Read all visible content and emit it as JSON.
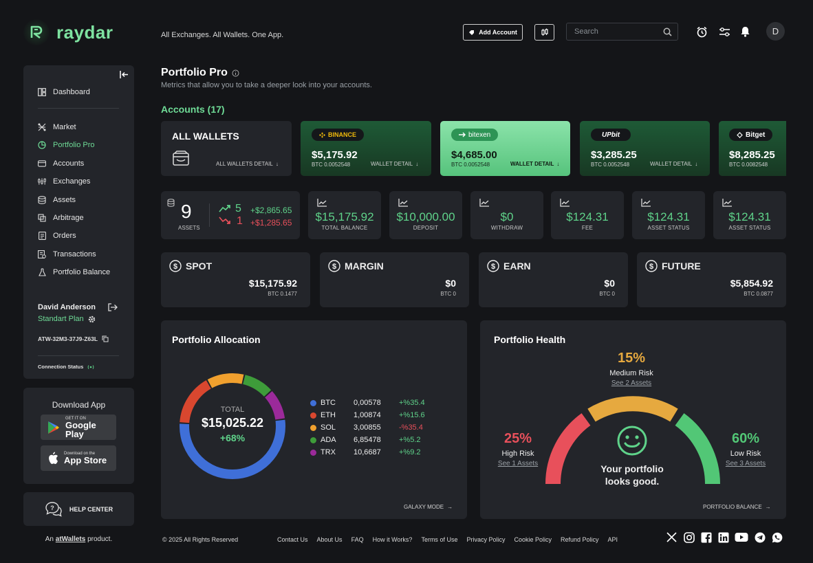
{
  "brand": {
    "name": "raydar",
    "tagline": "All Exchanges. All Wallets. One App."
  },
  "header": {
    "add_account": "Add Account",
    "search_placeholder": "Search",
    "avatar_initial": "D"
  },
  "sidebar": {
    "items": [
      {
        "label": "Dashboard",
        "icon": "dashboard-icon"
      },
      {
        "label": "Market",
        "icon": "market-icon"
      },
      {
        "label": "Portfolio Pro",
        "icon": "pie-icon",
        "active": true
      },
      {
        "label": "Accounts",
        "icon": "card-icon"
      },
      {
        "label": "Exchanges",
        "icon": "exchange-icon"
      },
      {
        "label": "Assets",
        "icon": "database-icon"
      },
      {
        "label": "Arbitrage",
        "icon": "arbitrage-icon"
      },
      {
        "label": "Orders",
        "icon": "orders-icon"
      },
      {
        "label": "Transactions",
        "icon": "transactions-icon"
      },
      {
        "label": "Portfolio Balance",
        "icon": "flask-icon"
      }
    ],
    "user": {
      "name": "David Anderson",
      "plan": "Standart Plan",
      "account_id": "ATW-32M3-37J9-Z63L"
    },
    "connection_status": "Connection Status",
    "download": {
      "title": "Download App",
      "google_small": "GET IT ON",
      "google_big": "Google Play",
      "apple_small": "Download on the",
      "apple_big": "App Store"
    },
    "help": "HELP CENTER",
    "product_prefix": "An",
    "product_link": "atWallets",
    "product_suffix": "product."
  },
  "page": {
    "title": "Portfolio Pro",
    "subtitle": "Metrics that allow you to take a deeper look into your accounts.",
    "accounts_heading": "Accounts (17)"
  },
  "wallets": {
    "all": {
      "title": "ALL WALLETS",
      "detail": "ALL WALLETS DETAIL"
    },
    "list": [
      {
        "name": "BINANCE",
        "amount": "$5,175.92",
        "btc": "BTC 0.0052548",
        "detail": "WALLET DETAIL"
      },
      {
        "name": "bitexen",
        "amount": "$4,685.00",
        "btc": "BTC 0.0052548",
        "detail": "WALLET DETAIL"
      },
      {
        "name": "UPbit",
        "amount": "$3,285.25",
        "btc": "BTC 0.0052548",
        "detail": "WALLET DETAIL"
      },
      {
        "name": "Bitget",
        "amount": "$8,285.25",
        "btc": "BTC 0.0082548",
        "detail": ""
      }
    ]
  },
  "stats": {
    "assets_count": "9",
    "assets_label": "ASSETS",
    "up_count": "5",
    "up_value": "+$2,865.65",
    "down_count": "1",
    "down_value": "+$1,285.65",
    "items": [
      {
        "value": "$15,175.92",
        "label": "TOTAL BALANCE"
      },
      {
        "value": "$10,000.00",
        "label": "DEPOSIT"
      },
      {
        "value": "$0",
        "label": "WITHDRAW"
      },
      {
        "value": "$124.31",
        "label": "FEE"
      },
      {
        "value": "$124.31",
        "label": "ASSET STATUS"
      },
      {
        "value": "$124.31",
        "label": "ASSET STATUS"
      }
    ]
  },
  "tiles": [
    {
      "title": "SPOT",
      "value": "$15,175.92",
      "btc": "BTC 0.1477"
    },
    {
      "title": "MARGIN",
      "value": "$0",
      "btc": "BTC 0"
    },
    {
      "title": "EARN",
      "value": "$0",
      "btc": "BTC 0"
    },
    {
      "title": "FUTURE",
      "value": "$5,854.92",
      "btc": "BTC 0.0877"
    }
  ],
  "allocation": {
    "title": "Portfolio Allocation",
    "total_label": "TOTAL",
    "total_value": "$15,025.22",
    "total_change": "+68%",
    "footer": "GALAXY MODE",
    "assets": [
      {
        "symbol": "BTC",
        "amount": "0,00578",
        "change": "+%35.4",
        "color": "#3f6fd8",
        "share": 0.5
      },
      {
        "symbol": "ETH",
        "amount": "1,00874",
        "change": "+%15.6",
        "color": "#d9472f",
        "share": 0.15
      },
      {
        "symbol": "SOL",
        "amount": "3,00855",
        "change": "-%35.4",
        "color": "#f0a02e",
        "share": 0.11
      },
      {
        "symbol": "ADA",
        "amount": "6,85478",
        "change": "+%5.2",
        "color": "#3e9c3a",
        "share": 0.09
      },
      {
        "symbol": "TRX",
        "amount": "10,6687",
        "change": "+%9.2",
        "color": "#9b2a9a",
        "share": 0.09
      }
    ]
  },
  "health": {
    "title": "Portfolio Health",
    "medium": {
      "pct": "15%",
      "label": "Medium Risk",
      "link": "See 2 Assets"
    },
    "high": {
      "pct": "25%",
      "label": "High Risk",
      "link": "See 1 Assets"
    },
    "low": {
      "pct": "60%",
      "label": "Low Risk",
      "link": "See 3 Assets"
    },
    "message_line1": "Your portfolio",
    "message_line2": "looks good.",
    "footer": "PORTFOLIO BALANCE",
    "colors": {
      "high": "#e8505b",
      "medium": "#e6a93f",
      "low": "#52c776"
    }
  },
  "footer": {
    "copyright": "© 2025 All Rights Reserved",
    "links": [
      "Contact Us",
      "About Us",
      "FAQ",
      "How it Works?",
      "Terms of Use",
      "Privacy Policy",
      "Cookie Policy",
      "Refund Policy",
      "API"
    ]
  }
}
